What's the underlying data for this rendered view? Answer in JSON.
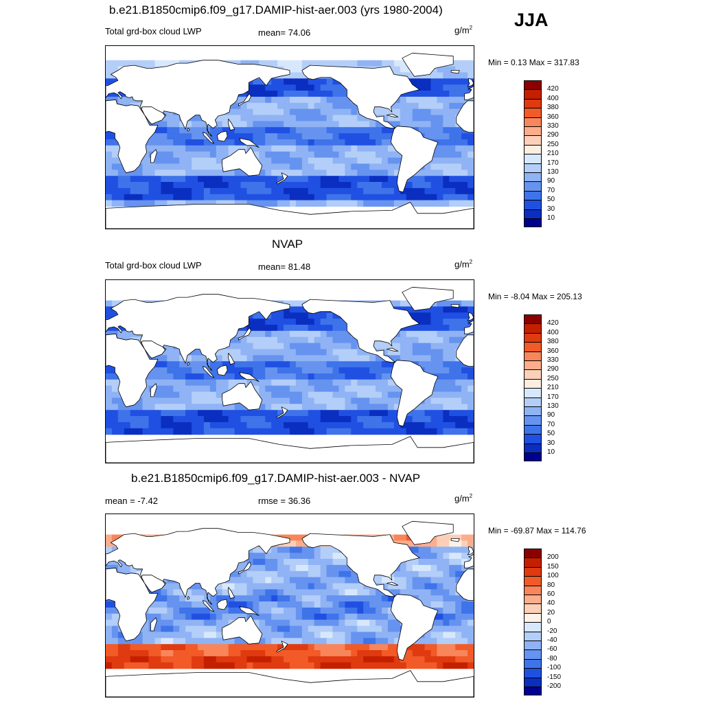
{
  "season": "JJA",
  "panels": [
    {
      "title": "b.e21.B1850cmip6.f09_g17.DAMIP-hist-aer.003 (yrs 1980-2004)",
      "left_label": "Total grd-box cloud LWP",
      "center_label": "mean=  74.06",
      "units": "g/m",
      "units_sup": "2",
      "minmax": "Min =   0.13 Max = 317.83",
      "colorbar": {
        "labels": [
          "420",
          "400",
          "380",
          "360",
          "330",
          "290",
          "250",
          "210",
          "170",
          "130",
          "90",
          "70",
          "50",
          "30",
          "10"
        ],
        "colors": [
          "#8b0000",
          "#c42000",
          "#e03a10",
          "#f25a28",
          "#f8865a",
          "#fbad8c",
          "#fcd0b8",
          "#fdeee0",
          "#d8e8fc",
          "#b3cef8",
          "#8fb3f4",
          "#6693ef",
          "#3f73ea",
          "#2050e2",
          "#0a2fc0",
          "#000090"
        ]
      }
    },
    {
      "title": "NVAP",
      "left_label": "Total grd-box cloud LWP",
      "center_label": "mean=  81.48",
      "units": "g/m",
      "units_sup": "2",
      "minmax": "Min =  -8.04 Max = 205.13",
      "colorbar": {
        "labels": [
          "420",
          "400",
          "380",
          "360",
          "330",
          "290",
          "250",
          "210",
          "170",
          "130",
          "90",
          "70",
          "50",
          "30",
          "10"
        ],
        "colors": [
          "#8b0000",
          "#c42000",
          "#e03a10",
          "#f25a28",
          "#f8865a",
          "#fbad8c",
          "#fcd0b8",
          "#fdeee0",
          "#d8e8fc",
          "#b3cef8",
          "#8fb3f4",
          "#6693ef",
          "#3f73ea",
          "#2050e2",
          "#0a2fc0",
          "#000090"
        ]
      }
    },
    {
      "title": "b.e21.B1850cmip6.f09_g17.DAMIP-hist-aer.003 - NVAP",
      "left_label": "mean =  -7.42",
      "center_label": "rmse =  36.36",
      "units": "g/m",
      "units_sup": "2",
      "minmax": "Min = -69.87 Max = 114.76",
      "colorbar": {
        "labels": [
          "200",
          "150",
          "100",
          "80",
          "60",
          "40",
          "20",
          "0",
          "-20",
          "-40",
          "-60",
          "-80",
          "-100",
          "-150",
          "-200"
        ],
        "colors": [
          "#8b0000",
          "#c42000",
          "#e03a10",
          "#f25a28",
          "#f8865a",
          "#fbad8c",
          "#fcd0b8",
          "#fdf2e8",
          "#d8e8fc",
          "#b3cef8",
          "#8fb3f4",
          "#6693ef",
          "#3f73ea",
          "#2050e2",
          "#0a2fc0",
          "#000090"
        ]
      }
    }
  ]
}
